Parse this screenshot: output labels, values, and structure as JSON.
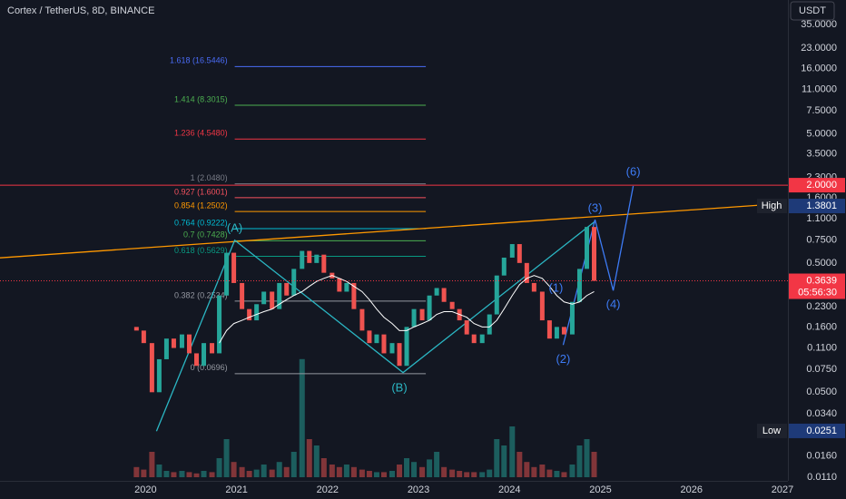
{
  "chart_data": {
    "type": "candlestick",
    "title": "Cortex / TetherUS, 8D, BINANCE",
    "currency": "USDT",
    "log_scale": true,
    "grid": false,
    "up_color": "#26a69a",
    "down_color": "#ef5350",
    "ma_color": "#ffffff",
    "xlim": [
      2018.4,
      2027.06
    ],
    "xticks": [
      2020,
      2021,
      2022,
      2023,
      2024,
      2025,
      2026,
      2027
    ],
    "ylim": [
      0.011,
      35
    ],
    "yticks": [
      {
        "value": 35,
        "label": "35.0000"
      },
      {
        "value": 23,
        "label": "23.0000"
      },
      {
        "value": 16,
        "label": "16.0000"
      },
      {
        "value": 11,
        "label": "11.0000"
      },
      {
        "value": 7.5,
        "label": "7.5000"
      },
      {
        "value": 5,
        "label": "5.0000"
      },
      {
        "value": 3.5,
        "label": "3.5000"
      },
      {
        "value": 2.3,
        "label": "2.3000"
      },
      {
        "value": 1.6,
        "label": "1.6000"
      },
      {
        "value": 1.1,
        "label": "1.1000"
      },
      {
        "value": 0.75,
        "label": "0.7500"
      },
      {
        "value": 0.5,
        "label": "0.5000"
      },
      {
        "value": 0.23,
        "label": "0.2300"
      },
      {
        "value": 0.16,
        "label": "0.1600"
      },
      {
        "value": 0.11,
        "label": "0.1100"
      },
      {
        "value": 0.075,
        "label": "0.0750"
      },
      {
        "value": 0.05,
        "label": "0.0500"
      },
      {
        "value": 0.034,
        "label": "0.0340"
      },
      {
        "value": 0.016,
        "label": "0.0160"
      },
      {
        "value": 0.011,
        "label": "0.0110"
      }
    ],
    "x": [
      2019.9,
      2019.98,
      2020.07,
      2020.15,
      2020.23,
      2020.31,
      2020.4,
      2020.48,
      2020.56,
      2020.64,
      2020.73,
      2020.81,
      2020.89,
      2020.97,
      2021.06,
      2021.14,
      2021.22,
      2021.3,
      2021.39,
      2021.47,
      2021.55,
      2021.63,
      2021.72,
      2021.8,
      2021.88,
      2021.96,
      2022.05,
      2022.13,
      2022.21,
      2022.29,
      2022.38,
      2022.46,
      2022.54,
      2022.62,
      2022.71,
      2022.79,
      2022.87,
      2022.95,
      2023.04,
      2023.12,
      2023.2,
      2023.28,
      2023.37,
      2023.45,
      2023.53,
      2023.61,
      2023.7,
      2023.78,
      2023.86,
      2023.94,
      2024.03,
      2024.11,
      2024.19,
      2024.27,
      2024.36,
      2024.44,
      2024.52,
      2024.6,
      2024.69,
      2024.77,
      2024.85,
      2024.93
    ],
    "open": [
      0.16,
      0.15,
      0.12,
      0.05,
      0.09,
      0.13,
      0.11,
      0.14,
      0.1,
      0.08,
      0.12,
      0.1,
      0.28,
      0.6,
      0.35,
      0.22,
      0.18,
      0.24,
      0.3,
      0.22,
      0.35,
      0.28,
      0.45,
      0.62,
      0.5,
      0.58,
      0.42,
      0.38,
      0.3,
      0.35,
      0.22,
      0.15,
      0.12,
      0.14,
      0.1,
      0.12,
      0.08,
      0.16,
      0.22,
      0.18,
      0.28,
      0.32,
      0.25,
      0.22,
      0.18,
      0.14,
      0.12,
      0.14,
      0.2,
      0.4,
      0.55,
      0.7,
      0.5,
      0.35,
      0.3,
      0.18,
      0.13,
      0.16,
      0.14,
      0.25,
      0.45,
      0.95
    ],
    "high": {
      "text": "High",
      "value": 1.3801
    },
    "low": {
      "text": "Low",
      "value": 0.0251
    },
    "close": [
      0.15,
      0.12,
      0.05,
      0.09,
      0.13,
      0.11,
      0.14,
      0.1,
      0.08,
      0.12,
      0.1,
      0.28,
      0.6,
      0.35,
      0.22,
      0.18,
      0.24,
      0.3,
      0.22,
      0.35,
      0.28,
      0.45,
      0.62,
      0.5,
      0.58,
      0.42,
      0.38,
      0.3,
      0.35,
      0.22,
      0.15,
      0.12,
      0.14,
      0.1,
      0.12,
      0.08,
      0.16,
      0.22,
      0.18,
      0.28,
      0.32,
      0.25,
      0.22,
      0.18,
      0.14,
      0.12,
      0.14,
      0.2,
      0.4,
      0.55,
      0.7,
      0.5,
      0.35,
      0.3,
      0.18,
      0.13,
      0.16,
      0.14,
      0.25,
      0.45,
      0.95,
      0.3639
    ],
    "volume": [
      8,
      6,
      20,
      10,
      5,
      4,
      5,
      4,
      3,
      5,
      4,
      15,
      30,
      12,
      8,
      5,
      6,
      10,
      6,
      12,
      8,
      20,
      93,
      30,
      25,
      15,
      10,
      8,
      10,
      8,
      6,
      5,
      4,
      4,
      5,
      10,
      15,
      12,
      8,
      14,
      20,
      8,
      6,
      5,
      4,
      4,
      4,
      6,
      30,
      25,
      40,
      20,
      12,
      8,
      10,
      6,
      5,
      4,
      10,
      25,
      30,
      20
    ],
    "vlim": [
      0,
      100
    ],
    "ma": [
      null,
      null,
      null,
      null,
      null,
      null,
      null,
      null,
      null,
      null,
      null,
      0.12,
      0.15,
      0.17,
      0.18,
      0.19,
      0.2,
      0.21,
      0.22,
      0.24,
      0.26,
      0.28,
      0.3,
      0.33,
      0.36,
      0.38,
      0.4,
      0.38,
      0.36,
      0.33,
      0.3,
      0.26,
      0.22,
      0.19,
      0.17,
      0.15,
      0.15,
      0.16,
      0.17,
      0.18,
      0.2,
      0.21,
      0.21,
      0.2,
      0.19,
      0.17,
      0.16,
      0.16,
      0.18,
      0.22,
      0.28,
      0.34,
      0.38,
      0.4,
      0.38,
      0.33,
      0.28,
      0.25,
      0.24,
      0.25,
      0.28,
      0.3
    ],
    "fib_x": [
      2020.98,
      2023.08
    ],
    "fib_levels": [
      {
        "value": 16.5446,
        "label": "1.618 (16.5446)",
        "color": "#4a6cf7"
      },
      {
        "value": 8.3015,
        "label": "1.414 (8.3015)",
        "color": "#4caf50"
      },
      {
        "value": 4.548,
        "label": "1.236 (4.5480)",
        "color": "#f23645"
      },
      {
        "value": 2.048,
        "label": "1 (2.0480)",
        "color": "#787b86"
      },
      {
        "value": 1.6001,
        "label": "0.927 (1.6001)",
        "color": "#f7525f"
      },
      {
        "value": 1.2502,
        "label": "0.854 (1.2502)",
        "color": "#ff9800"
      },
      {
        "value": 0.9222,
        "label": "0.764 (0.9222)",
        "color": "#00bcd4"
      },
      {
        "value": 0.7428,
        "label": "0.7 (0.7428)",
        "color": "#4caf50"
      },
      {
        "value": 0.5629,
        "label": "0.618 (0.5629)",
        "color": "#089981"
      },
      {
        "value": 0.2534,
        "label": "0.382 (0.2534)",
        "color": "#9598a1"
      },
      {
        "value": 0.0696,
        "label": "0 (0.0696)",
        "color": "#9598a1"
      }
    ],
    "drawings": [
      {
        "color": "#ff9800",
        "x": [
          2018.4,
          2026.75
        ],
        "y": [
          0.548,
          1.4
        ]
      },
      {
        "color": "#2bb7c4",
        "x": [
          2020.12,
          2020.98,
          2022.83,
          2024.94
        ],
        "y": [
          0.025,
          0.75,
          0.071,
          1.05
        ]
      },
      {
        "color": "#3d7bf5",
        "x": [
          2024.59,
          2024.94,
          2025.14,
          2025.36
        ],
        "y": [
          0.116,
          1.08,
          0.306,
          1.97
        ]
      }
    ],
    "annotations": [
      {
        "text": "(A)",
        "x": 2020.98,
        "y": 0.92,
        "color": "#2bb7c4"
      },
      {
        "text": "(B)",
        "x": 2022.79,
        "y": 0.0535,
        "color": "#2bb7c4"
      },
      {
        "text": "(1)",
        "x": 2024.51,
        "y": 0.316,
        "color": "#3d7bf5"
      },
      {
        "text": "(2)",
        "x": 2024.59,
        "y": 0.089,
        "color": "#3d7bf5"
      },
      {
        "text": "(3)",
        "x": 2024.94,
        "y": 1.31,
        "color": "#3d7bf5"
      },
      {
        "text": "(4)",
        "x": 2025.14,
        "y": 0.237,
        "color": "#3d7bf5"
      },
      {
        "text": "(6)",
        "x": 2025.36,
        "y": 2.5,
        "color": "#3d7bf5"
      }
    ],
    "price_line": {
      "value": 2,
      "label": "2.0000",
      "color": "#f23645"
    },
    "last_price": {
      "value": 0.3639,
      "countdown": "05:56:30",
      "color": "#f23645"
    }
  }
}
